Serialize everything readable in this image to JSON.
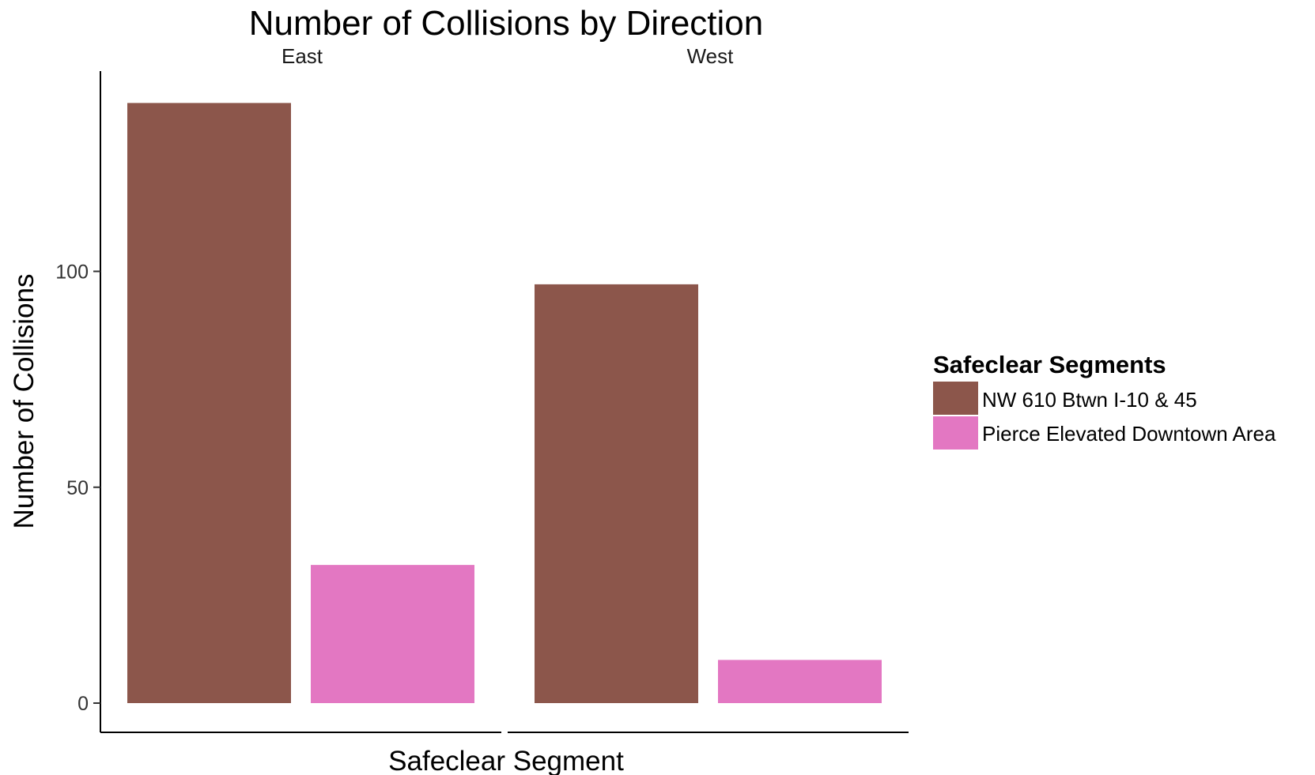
{
  "chart_data": {
    "type": "bar",
    "title": "Number of Collisions by Direction",
    "xlabel": "Safeclear Segment",
    "ylabel": "Number of Collisions",
    "ylim": [
      0,
      140
    ],
    "yticks": [
      0,
      50,
      100
    ],
    "grid": false,
    "facets": [
      {
        "label": "East",
        "values": [
          139,
          32
        ]
      },
      {
        "label": "West",
        "values": [
          97,
          10
        ]
      }
    ],
    "legend": {
      "title": "Safeclear Segments",
      "placement": "right",
      "items": [
        {
          "label": "NW 610 Btwn I-10 & 45",
          "color": "#8C564B"
        },
        {
          "label": "Pierce Elevated Downtown Area",
          "color": "#E377C2"
        }
      ]
    }
  }
}
